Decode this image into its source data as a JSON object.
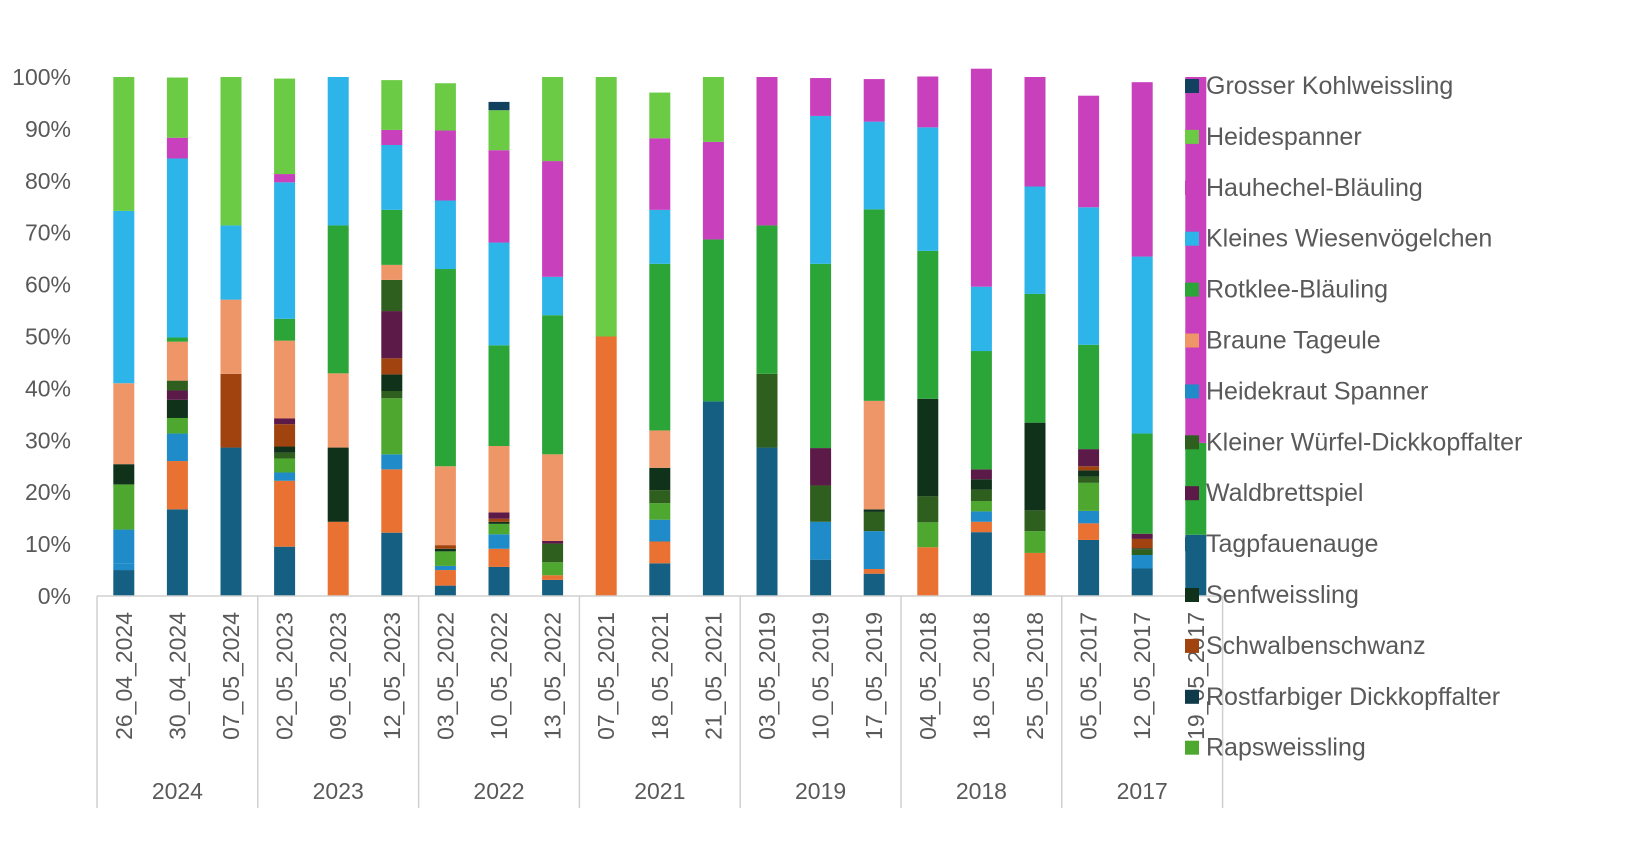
{
  "chart_data": {
    "type": "bar",
    "stacked": true,
    "percent": true,
    "ylim": [
      0,
      100
    ],
    "yticks": [
      "0%",
      "10%",
      "20%",
      "30%",
      "40%",
      "50%",
      "60%",
      "70%",
      "80%",
      "90%",
      "100%"
    ],
    "grid": false,
    "legend_position": "right",
    "groups": [
      {
        "label": "2024",
        "count": 3
      },
      {
        "label": "2023",
        "count": 3
      },
      {
        "label": "2022",
        "count": 3
      },
      {
        "label": "2021",
        "count": 3
      },
      {
        "label": "2019",
        "count": 3
      },
      {
        "label": "2018",
        "count": 3
      },
      {
        "label": "2017",
        "count": 3
      }
    ],
    "categories": [
      "26_04_2024",
      "30_04_2024",
      "07_05_2024",
      "02_05_2023",
      "09_05_2023",
      "12_05_2023",
      "03_05_2022",
      "10_05_2022",
      "13_05_2022",
      "07_05_2021",
      "18_05_2021",
      "21_05_2021",
      "03_05_2019",
      "10_05_2019",
      "17_05_2019",
      "04_05_2018",
      "18_05_2018",
      "25_05_2018",
      "05_05_2017",
      "12_05_2017",
      "19_05_2017"
    ],
    "series": [
      {
        "name": "Tagpfauenauge",
        "color": "#156082",
        "values": [
          5,
          16.7,
          28.6,
          9.5,
          0,
          12.2,
          2,
          5.6,
          3.1,
          0,
          6.3,
          37.5,
          28.6,
          7,
          4.3,
          0,
          12.3,
          0,
          10.8,
          5.3,
          11.8
        ]
      },
      {
        "name": "Heidekraut Spanner",
        "color": "#1F8BC9",
        "values": [
          0,
          0,
          0,
          0,
          0,
          0,
          0,
          0,
          0,
          0,
          0,
          0,
          0,
          0,
          0,
          0,
          0,
          0,
          0,
          0,
          0
        ]
      },
      {
        "name": "Braune Tageule",
        "color": "#E97132",
        "values": [
          0,
          9.3,
          0,
          12.7,
          14.3,
          12.2,
          3,
          3.5,
          0.9,
          50,
          4.2,
          0,
          0,
          0,
          0.9,
          9.4,
          2,
          8.3,
          3.2,
          0,
          0
        ]
      },
      {
        "name": "Rostfarbiger Dickkopffalter",
        "color": "#0F9ED5",
        "values": [
          0,
          0,
          0,
          0,
          0,
          0,
          0,
          0,
          0,
          0,
          0,
          0,
          0,
          0,
          0,
          0,
          0,
          0,
          0,
          0,
          0
        ]
      },
      {
        "name": "Rapsweissling",
        "color": "#1F8BC9",
        "values": [
          1.2,
          0,
          0,
          0,
          0,
          0,
          0,
          0,
          0,
          0,
          0,
          0,
          0,
          0,
          0,
          0,
          0,
          0,
          0,
          0,
          0
        ]
      },
      {
        "name": "Kleines Wiesenvögelchen",
        "color": "#1F8BC9",
        "values": [
          6.6,
          5.3,
          0,
          1.6,
          0,
          2.9,
          0.8,
          2.8,
          0,
          0,
          4.2,
          0,
          0,
          7.3,
          7.3,
          0,
          2,
          0,
          2.4,
          2.6,
          0
        ]
      },
      {
        "name": "Heidespanner",
        "color": "#4EA72E",
        "values": [
          8.7,
          3,
          0,
          2.7,
          0,
          10.8,
          2.8,
          2,
          2.5,
          0,
          3.2,
          0,
          0,
          0,
          0,
          4.8,
          2,
          4.2,
          5.4,
          0,
          0
        ]
      },
      {
        "name": "Senfweissling",
        "color": "#2F5F1F",
        "values": [
          0,
          0,
          0,
          1.1,
          0,
          1.4,
          0,
          0,
          3.6,
          0,
          2.5,
          0,
          14.2,
          7,
          3.7,
          5,
          2.2,
          4,
          1.2,
          1.1,
          0
        ]
      },
      {
        "name": "Waldbrettspiel",
        "color": "#10321A",
        "values": [
          3.9,
          3.5,
          0,
          1.2,
          14.3,
          3.2,
          0.5,
          0.4,
          0,
          0,
          4.3,
          0,
          0,
          0,
          0.5,
          18.8,
          2,
          16.9,
          1.2,
          0.2,
          0
        ]
      },
      {
        "name": "Schwalbenschwanz",
        "color": "#A0430F",
        "values": [
          0,
          0,
          14.2,
          4.3,
          0,
          3.1,
          0.7,
          0.6,
          0,
          0,
          0,
          0,
          0,
          0,
          0,
          0,
          0,
          0,
          0.8,
          1.8,
          0
        ]
      },
      {
        "name": "Hauhechel-Bläuling",
        "color": "#5C1A48",
        "values": [
          0,
          1.8,
          0,
          1.1,
          0,
          9.1,
          0,
          1.2,
          0.5,
          0,
          0,
          0,
          0,
          7.2,
          0,
          0,
          1.9,
          0,
          3.3,
          1,
          0
        ]
      },
      {
        "name": "Kleiner Würfel-Dickkopffalter",
        "color": "#2F5F1F",
        "values": [
          0,
          1.9,
          0,
          0,
          0,
          6,
          0,
          0,
          0,
          0,
          0,
          0,
          0,
          0,
          0,
          0,
          0,
          0,
          0,
          0,
          0
        ]
      },
      {
        "name": "Braune Tageule",
        "color": "#EF9669",
        "values": [
          15.6,
          7.5,
          14.3,
          15,
          14.3,
          2.9,
          15.2,
          12.8,
          16.7,
          0,
          7.2,
          0,
          0,
          0,
          20.9,
          0,
          0,
          0,
          0,
          0,
          0
        ]
      },
      {
        "name": "Rotklee-Bläuling",
        "color": "#2BA538",
        "values": [
          0,
          0.8,
          0,
          4.2,
          28.5,
          10.6,
          38,
          19.4,
          26.8,
          0,
          32.1,
          31.2,
          28.6,
          35.5,
          36.9,
          28.5,
          22.8,
          24.8,
          20.1,
          19.3,
          17.7
        ]
      },
      {
        "name": "Kleines Wiesenvögelchen",
        "color": "#2DB4E8",
        "values": [
          33.2,
          34.5,
          14.3,
          26.3,
          28.6,
          12.5,
          13.2,
          19.8,
          7.4,
          0,
          10.4,
          0,
          0,
          28.5,
          16.9,
          23.8,
          12.4,
          20.7,
          26.5,
          34.1,
          0
        ]
      },
      {
        "name": "Hauhechel-Bläuling",
        "color": "#C840BC",
        "values": [
          0,
          4,
          0,
          1.6,
          0,
          2.9,
          13.5,
          17.8,
          22.3,
          0,
          13.8,
          18.8,
          28.6,
          7.3,
          8.2,
          9.8,
          42,
          21.1,
          21.5,
          33.6,
          70.5
        ]
      },
      {
        "name": "Heidespanner",
        "color": "#6CCB45",
        "values": [
          25.8,
          11.6,
          28.6,
          18.4,
          0,
          9.6,
          9.1,
          7.7,
          16.2,
          50,
          8.8,
          12.5,
          0,
          0,
          0,
          0,
          0,
          0,
          0,
          0,
          0
        ]
      },
      {
        "name": "Grosser Kohlweissling",
        "color": "#12405F",
        "values": [
          0,
          0,
          0,
          0,
          0,
          0,
          0,
          1.6,
          0,
          0,
          0,
          0,
          0,
          0,
          0,
          0,
          0,
          0,
          0,
          0,
          0
        ]
      }
    ],
    "legend": [
      {
        "name": "Grosser Kohlweissling",
        "color": "#12405F"
      },
      {
        "name": "Heidespanner",
        "color": "#6CCB45"
      },
      {
        "name": "Hauhechel-Bläuling",
        "color": "#C840BC"
      },
      {
        "name": "Kleines Wiesenvögelchen",
        "color": "#2DB4E8"
      },
      {
        "name": "Rotklee-Bläuling",
        "color": "#2BA538"
      },
      {
        "name": "Braune Tageule",
        "color": "#EF9669"
      },
      {
        "name": "Heidekraut Spanner",
        "color": "#1F8BC9"
      },
      {
        "name": "Kleiner Würfel-Dickkopffalter",
        "color": "#2F5F1F"
      },
      {
        "name": "Waldbrettspiel",
        "color": "#5C1A48"
      },
      {
        "name": "Tagpfauenauge",
        "color": "#156082"
      },
      {
        "name": "Senfweissling",
        "color": "#10321A"
      },
      {
        "name": "Schwalbenschwanz",
        "color": "#A0430F"
      },
      {
        "name": "Rostfarbiger Dickkopffalter",
        "color": "#0E3A4A"
      },
      {
        "name": "Rapsweissling",
        "color": "#4EA72E"
      }
    ]
  }
}
